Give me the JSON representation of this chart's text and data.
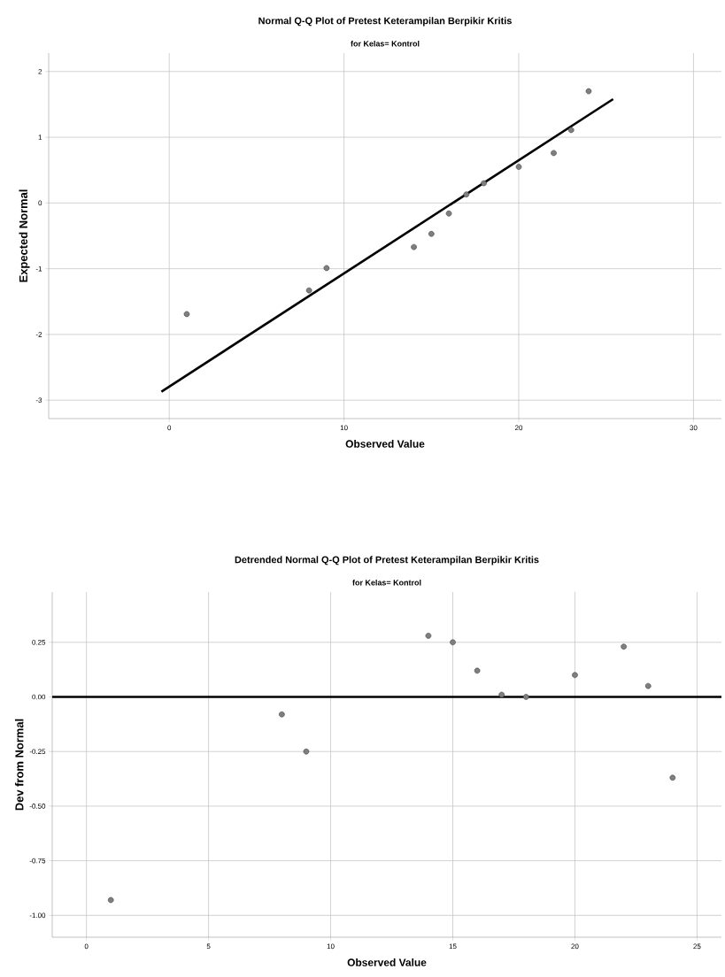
{
  "chart_data": [
    {
      "type": "scatter",
      "title": "Normal Q-Q Plot of Pretest Keterampilan Berpikir Kritis",
      "subtitle": "for Kelas= Kontrol",
      "xlabel": "Observed Value",
      "ylabel": "Expected Normal",
      "series": [
        {
          "color": "#7f7f7f",
          "marker": "circle",
          "x": [
            1,
            8,
            9,
            14,
            15,
            16,
            17,
            18,
            20,
            22,
            23,
            24
          ],
          "values": [
            -1.69,
            -1.33,
            -0.99,
            -0.67,
            -0.47,
            -0.16,
            0.13,
            0.3,
            0.55,
            0.76,
            1.11,
            1.7
          ]
        },
        {
          "type": "line",
          "color": "#000000",
          "marker": "none",
          "x": [
            -0.45,
            25.4
          ],
          "values": [
            -2.87,
            1.58
          ]
        }
      ],
      "xlim": [
        -6.9,
        31.6
      ],
      "ylim": [
        -3.28,
        2.28
      ],
      "xticks": [
        0,
        10,
        20,
        30
      ],
      "yticks": [
        -3,
        -2,
        -1,
        0,
        1,
        2
      ],
      "grid": true
    },
    {
      "type": "scatter",
      "title": "Detrended Normal Q-Q Plot of Pretest Keterampilan Berpikir Kritis",
      "subtitle": "for Kelas= Kontrol",
      "xlabel": "Observed Value",
      "ylabel": "Dev from Normal",
      "series": [
        {
          "color": "#7f7f7f",
          "marker": "circle",
          "x": [
            1,
            8,
            9,
            14,
            15,
            16,
            17,
            18,
            20,
            22,
            23,
            24
          ],
          "values": [
            -0.93,
            -0.08,
            -0.25,
            0.28,
            0.25,
            0.12,
            0.01,
            0.0,
            0.1,
            0.23,
            0.05,
            -0.37
          ]
        }
      ],
      "ref_lines": [
        {
          "axis": "y",
          "value": 0,
          "color": "#000000"
        }
      ],
      "xlim": [
        -1.4,
        26
      ],
      "ylim": [
        -1.1,
        0.48
      ],
      "xticks": [
        0,
        5,
        10,
        15,
        20,
        25
      ],
      "yticks": [
        {
          "value": -1,
          "label": "-1.00"
        },
        {
          "value": -0.75,
          "label": "-0.75"
        },
        {
          "value": -0.5,
          "label": "-0.50"
        },
        {
          "value": -0.25,
          "label": "-0.25"
        },
        {
          "value": 0,
          "label": "0.00"
        },
        {
          "value": 0.25,
          "label": "0.25"
        }
      ],
      "grid": true
    }
  ]
}
